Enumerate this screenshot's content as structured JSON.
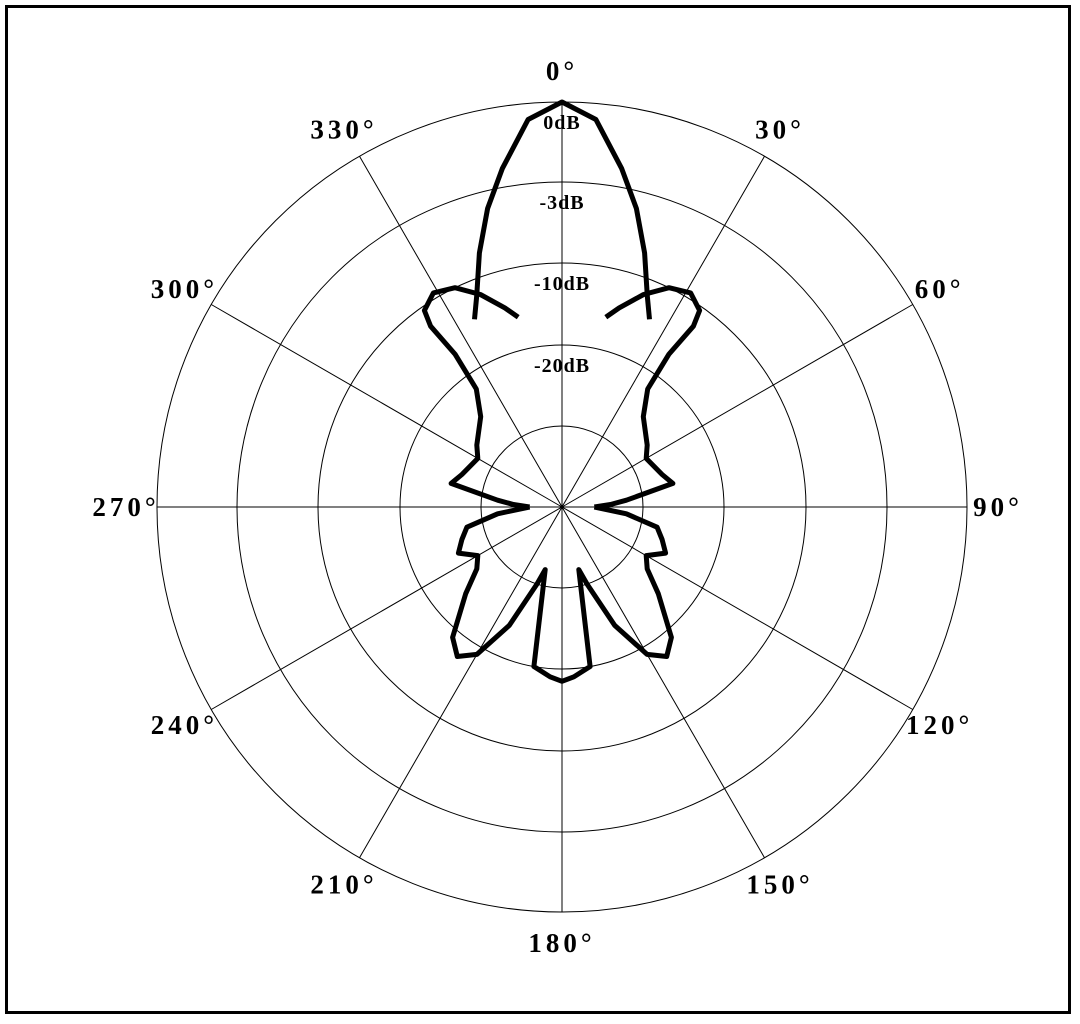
{
  "chart_data": {
    "type": "polar-line",
    "title": "",
    "angle_unit": "deg",
    "angle_zero": "top",
    "angle_direction": "clockwise",
    "angle_ticks": [
      0,
      30,
      60,
      90,
      120,
      150,
      180,
      210,
      240,
      270,
      300,
      330
    ],
    "angle_tick_labels": [
      "0°",
      "30°",
      "60°",
      "90°",
      "120°",
      "150°",
      "180°",
      "210°",
      "240°",
      "270°",
      "300°",
      "330°"
    ],
    "radial_label_values": [
      0,
      -3,
      -10,
      -20
    ],
    "radial_labels": [
      "0dB",
      "-3dB",
      "-10dB",
      "-20dB"
    ],
    "grid": true,
    "series": [
      {
        "segments": [
          [
            [
              -25,
              -14.5
            ],
            [
              -22,
              -12
            ],
            [
              -18,
              -8
            ],
            [
              -14,
              -4.5
            ],
            [
              -10,
              -2.3
            ],
            [
              -5,
              -0.6
            ],
            [
              0,
              0
            ],
            [
              5,
              -0.6
            ],
            [
              10,
              -2.3
            ],
            [
              14,
              -4.5
            ],
            [
              18,
              -8
            ],
            [
              22,
              -12
            ],
            [
              25,
              -14.5
            ]
          ],
          [
            [
              -13,
              -16
            ],
            [
              -16,
              -14.5
            ],
            [
              -21,
              -12
            ],
            [
              -26,
              -10
            ],
            [
              -31,
              -9.5
            ],
            [
              -35,
              -10.5
            ],
            [
              -36,
              -12.5
            ],
            [
              -35,
              -17
            ],
            [
              -36,
              -21
            ],
            [
              -42,
              -22.5
            ],
            [
              -54,
              -23.5
            ],
            [
              -60,
              -24
            ],
            [
              -72,
              -23.5
            ],
            [
              -78,
              -23
            ],
            [
              -84,
              -26
            ],
            [
              -87,
              -27
            ],
            [
              -90,
              -28
            ]
          ],
          [
            [
              13,
              -16
            ],
            [
              16,
              -14.5
            ],
            [
              21,
              -12
            ],
            [
              26,
              -10
            ],
            [
              31,
              -9.5
            ],
            [
              35,
              -10.5
            ],
            [
              36,
              -12.5
            ],
            [
              35,
              -17
            ],
            [
              36,
              -21
            ],
            [
              42,
              -22.5
            ],
            [
              54,
              -23.5
            ],
            [
              60,
              -24
            ],
            [
              72,
              -23.5
            ],
            [
              78,
              -23
            ],
            [
              84,
              -26
            ],
            [
              87,
              -27
            ],
            [
              90,
              -28
            ]
          ],
          [
            [
              -90,
              -28
            ],
            [
              -96,
              -26
            ],
            [
              -102,
              -24
            ],
            [
              -108,
              -23.5
            ],
            [
              -114,
              -23
            ],
            [
              -120,
              -24
            ],
            [
              -126,
              -23.5
            ],
            [
              -132,
              -22
            ],
            [
              -140,
              -19
            ],
            [
              -145,
              -17.5
            ],
            [
              -150,
              -19
            ],
            [
              -156,
              -22
            ],
            [
              -162,
              -25
            ],
            [
              -165,
              -26
            ],
            [
              -170,
              -20
            ],
            [
              -176,
              -19
            ],
            [
              -180,
              -18.5
            ],
            [
              -184,
              -19
            ],
            [
              -190,
              -20
            ],
            [
              -195,
              -26
            ],
            [
              -198,
              -25
            ],
            [
              -204,
              -22
            ],
            [
              -210,
              -19
            ],
            [
              -215,
              -17.5
            ],
            [
              -220,
              -19
            ],
            [
              -228,
              -22
            ],
            [
              -234,
              -23.5
            ],
            [
              -240,
              -24
            ],
            [
              -246,
              -23
            ],
            [
              -252,
              -23.5
            ],
            [
              -258,
              -24
            ],
            [
              -264,
              -26
            ],
            [
              -270,
              -28
            ]
          ]
        ],
        "color": "#000000"
      }
    ]
  }
}
